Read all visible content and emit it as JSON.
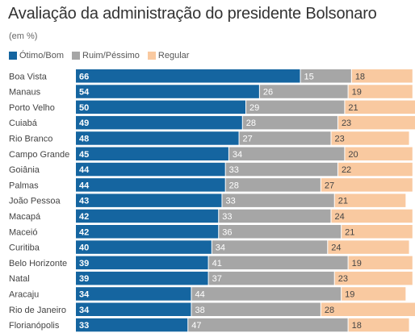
{
  "title": "Avaliação da administração do presidente Bolsonaro",
  "subtitle": "(em %)",
  "colors": {
    "otimo_bom": "#1565a0",
    "ruim_pessimo": "#a6a6a6",
    "regular": "#f9c9a0"
  },
  "chart_data": {
    "type": "bar",
    "orientation": "horizontal",
    "stacked": true,
    "title": "Avaliação da administração do presidente Bolsonaro",
    "subtitle": "(em %)",
    "legend_position": "top-left",
    "xlim": [
      0,
      100
    ],
    "categories": [
      "Boa Vista",
      "Manaus",
      "Porto Velho",
      "Cuiabá",
      "Rio Branco",
      "Campo Grande",
      "Goiânia",
      "Palmas",
      "João Pessoa",
      "Macapá",
      "Maceió",
      "Curitiba",
      "Belo Horizonte",
      "Natal",
      "Aracaju",
      "Rio de Janeiro",
      "Florianópolis"
    ],
    "series": [
      {
        "name": "Ótimo/Bom",
        "color": "#1565a0",
        "values": [
          66,
          54,
          50,
          49,
          48,
          45,
          44,
          44,
          43,
          42,
          42,
          40,
          39,
          39,
          34,
          34,
          33
        ]
      },
      {
        "name": "Ruim/Péssimo",
        "color": "#a6a6a6",
        "values": [
          15,
          26,
          29,
          28,
          27,
          34,
          33,
          28,
          33,
          33,
          36,
          34,
          41,
          37,
          44,
          38,
          47
        ]
      },
      {
        "name": "Regular",
        "color": "#f9c9a0",
        "values": [
          18,
          19,
          21,
          23,
          23,
          20,
          22,
          27,
          21,
          24,
          21,
          24,
          19,
          23,
          19,
          28,
          18
        ]
      }
    ]
  }
}
